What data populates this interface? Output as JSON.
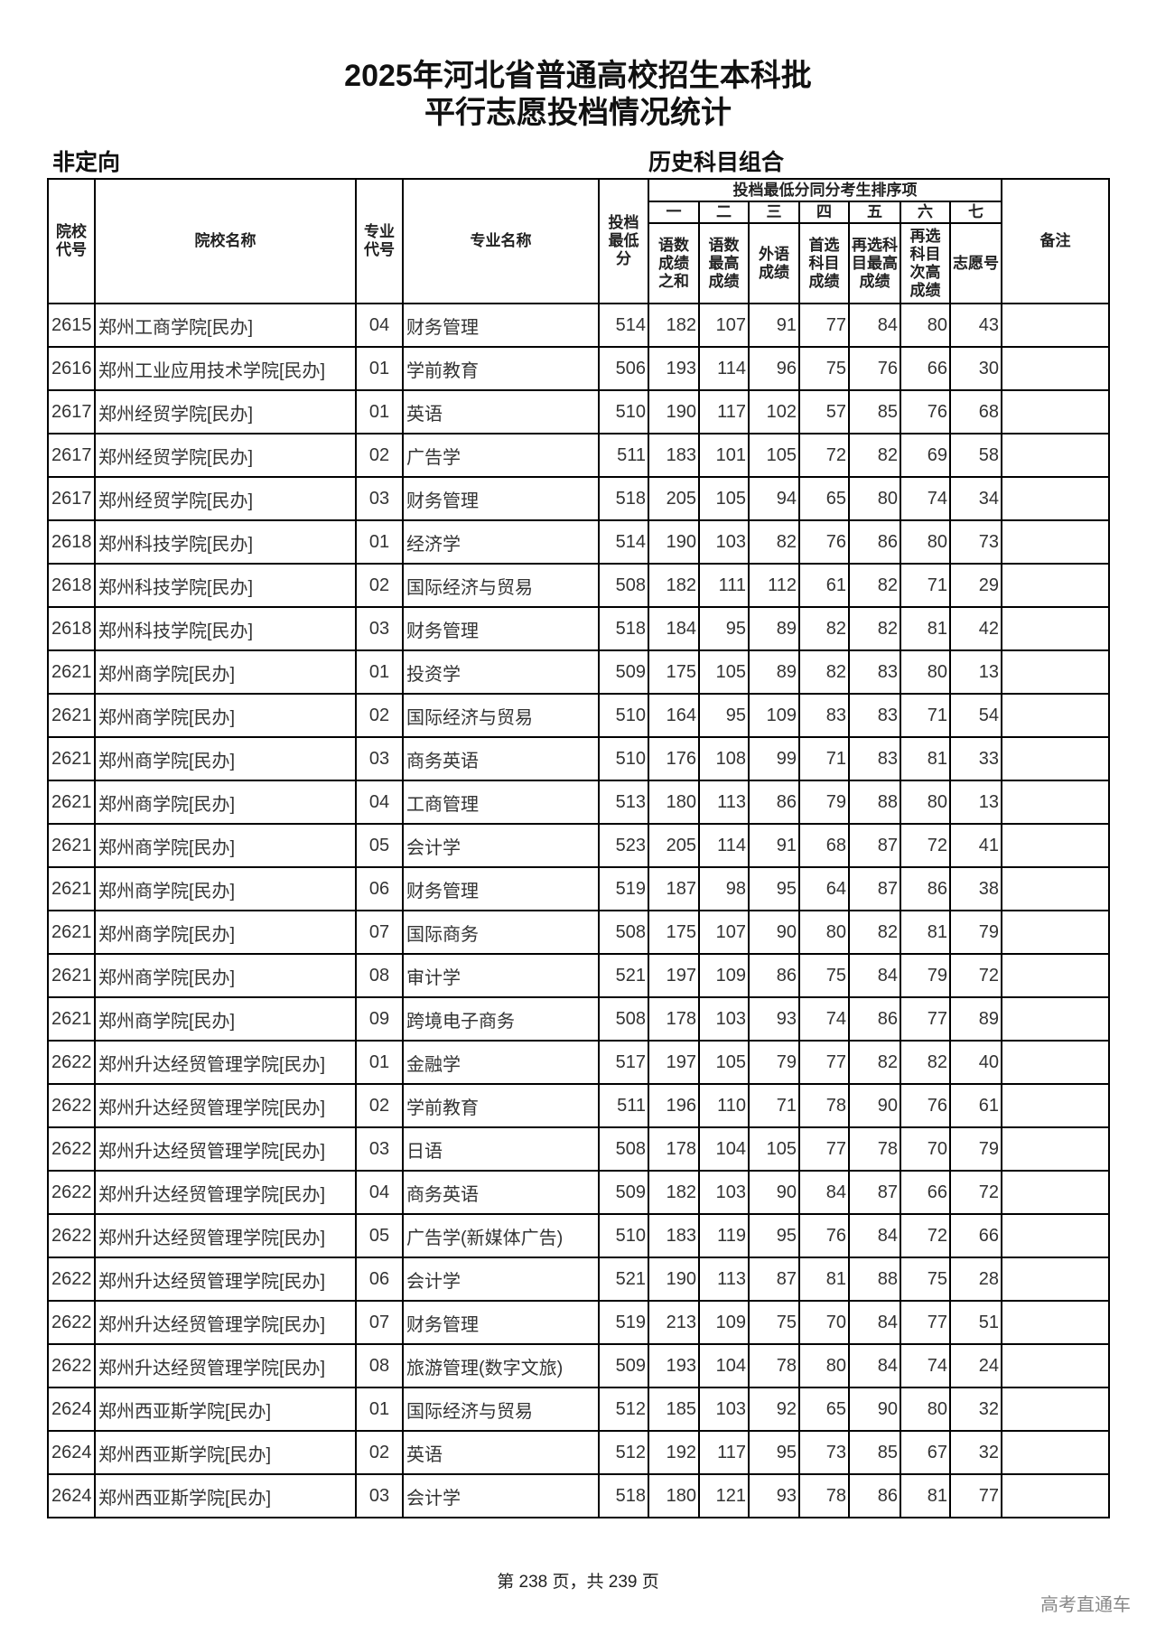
{
  "title_line1": "2025年河北省普通高校招生本科批",
  "title_line2": "平行志愿投档情况统计",
  "category": "非定向",
  "subject_group": "历史科目组合",
  "headers": {
    "school_code": "院校代号",
    "school_name": "院校名称",
    "major_code": "专业代号",
    "major_name": "专业名称",
    "min_score": "投档最低分",
    "tiebreak_group": "投档最低分同分考生排序项",
    "tiebreak_numbers": [
      "一",
      "二",
      "三",
      "四",
      "五",
      "六",
      "七"
    ],
    "tiebreak_items": [
      "语数成绩之和",
      "语数最高成绩",
      "外语成绩",
      "首选科目成绩",
      "再选科目最高成绩",
      "再选科目次高成绩",
      "志愿号"
    ],
    "remarks": "备注"
  },
  "rows": [
    [
      "2615",
      "郑州工商学院[民办]",
      "04",
      "财务管理",
      "514",
      "182",
      "107",
      "91",
      "77",
      "84",
      "80",
      "43",
      ""
    ],
    [
      "2616",
      "郑州工业应用技术学院[民办]",
      "01",
      "学前教育",
      "506",
      "193",
      "114",
      "96",
      "75",
      "76",
      "66",
      "30",
      ""
    ],
    [
      "2617",
      "郑州经贸学院[民办]",
      "01",
      "英语",
      "510",
      "190",
      "117",
      "102",
      "57",
      "85",
      "76",
      "68",
      ""
    ],
    [
      "2617",
      "郑州经贸学院[民办]",
      "02",
      "广告学",
      "511",
      "183",
      "101",
      "105",
      "72",
      "82",
      "69",
      "58",
      ""
    ],
    [
      "2617",
      "郑州经贸学院[民办]",
      "03",
      "财务管理",
      "518",
      "205",
      "105",
      "94",
      "65",
      "80",
      "74",
      "34",
      ""
    ],
    [
      "2618",
      "郑州科技学院[民办]",
      "01",
      "经济学",
      "514",
      "190",
      "103",
      "82",
      "76",
      "86",
      "80",
      "73",
      ""
    ],
    [
      "2618",
      "郑州科技学院[民办]",
      "02",
      "国际经济与贸易",
      "508",
      "182",
      "111",
      "112",
      "61",
      "82",
      "71",
      "29",
      ""
    ],
    [
      "2618",
      "郑州科技学院[民办]",
      "03",
      "财务管理",
      "518",
      "184",
      "95",
      "89",
      "82",
      "82",
      "81",
      "42",
      ""
    ],
    [
      "2621",
      "郑州商学院[民办]",
      "01",
      "投资学",
      "509",
      "175",
      "105",
      "89",
      "82",
      "83",
      "80",
      "13",
      ""
    ],
    [
      "2621",
      "郑州商学院[民办]",
      "02",
      "国际经济与贸易",
      "510",
      "164",
      "95",
      "109",
      "83",
      "83",
      "71",
      "54",
      ""
    ],
    [
      "2621",
      "郑州商学院[民办]",
      "03",
      "商务英语",
      "510",
      "176",
      "108",
      "99",
      "71",
      "83",
      "81",
      "33",
      ""
    ],
    [
      "2621",
      "郑州商学院[民办]",
      "04",
      "工商管理",
      "513",
      "180",
      "113",
      "86",
      "79",
      "88",
      "80",
      "13",
      ""
    ],
    [
      "2621",
      "郑州商学院[民办]",
      "05",
      "会计学",
      "523",
      "205",
      "114",
      "91",
      "68",
      "87",
      "72",
      "41",
      ""
    ],
    [
      "2621",
      "郑州商学院[民办]",
      "06",
      "财务管理",
      "519",
      "187",
      "98",
      "95",
      "64",
      "87",
      "86",
      "38",
      ""
    ],
    [
      "2621",
      "郑州商学院[民办]",
      "07",
      "国际商务",
      "508",
      "175",
      "107",
      "90",
      "80",
      "82",
      "81",
      "79",
      ""
    ],
    [
      "2621",
      "郑州商学院[民办]",
      "08",
      "审计学",
      "521",
      "197",
      "109",
      "86",
      "75",
      "84",
      "79",
      "72",
      ""
    ],
    [
      "2621",
      "郑州商学院[民办]",
      "09",
      "跨境电子商务",
      "508",
      "178",
      "103",
      "93",
      "74",
      "86",
      "77",
      "89",
      ""
    ],
    [
      "2622",
      "郑州升达经贸管理学院[民办]",
      "01",
      "金融学",
      "517",
      "197",
      "105",
      "79",
      "77",
      "82",
      "82",
      "40",
      ""
    ],
    [
      "2622",
      "郑州升达经贸管理学院[民办]",
      "02",
      "学前教育",
      "511",
      "196",
      "110",
      "71",
      "78",
      "90",
      "76",
      "61",
      ""
    ],
    [
      "2622",
      "郑州升达经贸管理学院[民办]",
      "03",
      "日语",
      "508",
      "178",
      "104",
      "105",
      "77",
      "78",
      "70",
      "79",
      ""
    ],
    [
      "2622",
      "郑州升达经贸管理学院[民办]",
      "04",
      "商务英语",
      "509",
      "182",
      "103",
      "90",
      "84",
      "87",
      "66",
      "72",
      ""
    ],
    [
      "2622",
      "郑州升达经贸管理学院[民办]",
      "05",
      "广告学(新媒体广告)",
      "510",
      "183",
      "119",
      "95",
      "76",
      "84",
      "72",
      "66",
      ""
    ],
    [
      "2622",
      "郑州升达经贸管理学院[民办]",
      "06",
      "会计学",
      "521",
      "190",
      "113",
      "87",
      "81",
      "88",
      "75",
      "28",
      ""
    ],
    [
      "2622",
      "郑州升达经贸管理学院[民办]",
      "07",
      "财务管理",
      "519",
      "213",
      "109",
      "75",
      "70",
      "84",
      "77",
      "51",
      ""
    ],
    [
      "2622",
      "郑州升达经贸管理学院[民办]",
      "08",
      "旅游管理(数字文旅)",
      "509",
      "193",
      "104",
      "78",
      "80",
      "84",
      "74",
      "24",
      ""
    ],
    [
      "2624",
      "郑州西亚斯学院[民办]",
      "01",
      "国际经济与贸易",
      "512",
      "185",
      "103",
      "92",
      "65",
      "90",
      "80",
      "32",
      ""
    ],
    [
      "2624",
      "郑州西亚斯学院[民办]",
      "02",
      "英语",
      "512",
      "192",
      "117",
      "95",
      "73",
      "85",
      "67",
      "32",
      ""
    ],
    [
      "2624",
      "郑州西亚斯学院[民办]",
      "03",
      "会计学",
      "518",
      "180",
      "121",
      "93",
      "78",
      "86",
      "81",
      "77",
      ""
    ]
  ],
  "footer": "第 238 页，共 239 页",
  "watermark": "高考直通车"
}
